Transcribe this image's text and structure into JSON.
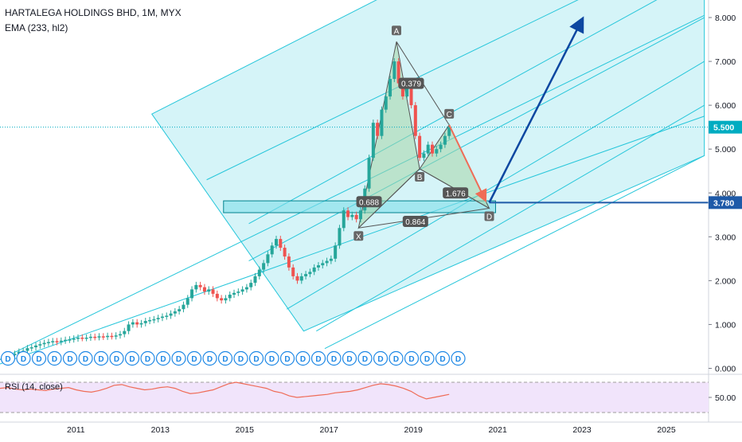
{
  "header": {
    "title": "HARTALEGA HOLDINGS BHD, 1M, MYX",
    "indicator": "EMA (233, hl2)"
  },
  "rsi": {
    "label": "RSI (14, close)",
    "tick": "50.00"
  },
  "colors": {
    "up": "#26a69a",
    "down": "#ef5350",
    "channel": "#b2ebf2",
    "channel_line": "#26c6da",
    "pattern": "#a5d6a7",
    "arrow": "#0d47a1",
    "projection": "#ef6c57",
    "last_price": "#00acc1",
    "level": "#1e5aa8",
    "rsi_bg": "#f1e4fb",
    "rsi_line": "#ef6c57"
  },
  "chart_data": {
    "type": "candlestick",
    "x_ticks": [
      "2011",
      "2013",
      "2015",
      "2017",
      "2019",
      "2021",
      "2023",
      "2025"
    ],
    "y_ticks": [
      "0.000",
      "1.000",
      "2.000",
      "3.000",
      "4.000",
      "5.000",
      "6.000",
      "7.000",
      "8.000"
    ],
    "ylim": [
      -0.1,
      8.4
    ],
    "xlim": [
      2009.2,
      2026.0
    ],
    "last_price": {
      "value": 5.5,
      "label": "5.500"
    },
    "target_level": {
      "value": 3.78,
      "label": "3.780"
    },
    "pattern_points": [
      {
        "name": "X",
        "x": 2017.7,
        "y": 3.2
      },
      {
        "name": "A",
        "x": 2018.6,
        "y": 7.45
      },
      {
        "name": "B",
        "x": 2019.15,
        "y": 4.55
      },
      {
        "name": "C",
        "x": 2019.85,
        "y": 5.55
      },
      {
        "name": "D",
        "x": 2020.8,
        "y": 3.65
      }
    ],
    "ratios": [
      {
        "label": "0.379",
        "x": 2018.95,
        "y": 6.5
      },
      {
        "label": "1.676",
        "x": 2020.0,
        "y": 4.0
      },
      {
        "label": "0.688",
        "x": 2017.95,
        "y": 3.8
      },
      {
        "label": "0.864",
        "x": 2019.05,
        "y": 3.35
      }
    ],
    "support_box": {
      "x0": 2014.5,
      "x1": 2020.95,
      "y0": 3.55,
      "y1": 3.82
    },
    "channel_corners": [
      {
        "x": 2012.8,
        "y": 5.8
      },
      {
        "x": 2025.9,
        "y": 12.2
      },
      {
        "x": 2025.9,
        "y": 4.85
      },
      {
        "x": 2016.4,
        "y": 0.85
      }
    ],
    "channel_lines": [
      {
        "x0": 2009.2,
        "y0": 0.2,
        "x1": 2025.9,
        "y1": 8.05
      },
      {
        "x0": 2009.2,
        "y0": 0.1,
        "x1": 2025.9,
        "y1": 5.75
      },
      {
        "x0": 2014.1,
        "y0": 4.3,
        "x1": 2025.9,
        "y1": 9.8
      },
      {
        "x0": 2015.1,
        "y0": 3.3,
        "x1": 2025.9,
        "y1": 9.0
      },
      {
        "x0": 2015.1,
        "y0": 2.45,
        "x1": 2025.9,
        "y1": 8.0
      },
      {
        "x0": 2016.0,
        "y0": 1.35,
        "x1": 2025.9,
        "y1": 7.0
      },
      {
        "x0": 2016.7,
        "y0": 0.85,
        "x1": 2025.9,
        "y1": 6.0
      },
      {
        "x0": 2016.9,
        "y0": 0.45,
        "x1": 2025.9,
        "y1": 4.85
      }
    ],
    "arrow": {
      "x0": 2020.8,
      "y0": 3.78,
      "x1": 2023.0,
      "y1": 7.95
    },
    "projection_arrow": {
      "x0": 2019.85,
      "y0": 5.55,
      "x1": 2020.7,
      "y1": 3.85
    },
    "candles": [
      [
        2009.25,
        0.22
      ],
      [
        2009.35,
        0.25
      ],
      [
        2009.45,
        0.3
      ],
      [
        2009.55,
        0.33
      ],
      [
        2009.65,
        0.38
      ],
      [
        2009.75,
        0.4
      ],
      [
        2009.85,
        0.46
      ],
      [
        2009.95,
        0.48
      ],
      [
        2010.05,
        0.52
      ],
      [
        2010.15,
        0.55
      ],
      [
        2010.25,
        0.58
      ],
      [
        2010.35,
        0.6
      ],
      [
        2010.45,
        0.62
      ],
      [
        2010.55,
        0.6
      ],
      [
        2010.65,
        0.63
      ],
      [
        2010.75,
        0.65
      ],
      [
        2010.85,
        0.66
      ],
      [
        2010.95,
        0.68
      ],
      [
        2011.05,
        0.7
      ],
      [
        2011.15,
        0.69
      ],
      [
        2011.25,
        0.7
      ],
      [
        2011.35,
        0.72
      ],
      [
        2011.45,
        0.71
      ],
      [
        2011.55,
        0.73
      ],
      [
        2011.65,
        0.72
      ],
      [
        2011.75,
        0.74
      ],
      [
        2011.85,
        0.73
      ],
      [
        2011.95,
        0.75
      ],
      [
        2012.05,
        0.78
      ],
      [
        2012.15,
        0.85
      ],
      [
        2012.25,
        1.0
      ],
      [
        2012.35,
        1.05
      ],
      [
        2012.45,
        1.0
      ],
      [
        2012.55,
        1.03
      ],
      [
        2012.65,
        1.08
      ],
      [
        2012.75,
        1.1
      ],
      [
        2012.85,
        1.12
      ],
      [
        2012.95,
        1.15
      ],
      [
        2013.05,
        1.18
      ],
      [
        2013.15,
        1.2
      ],
      [
        2013.25,
        1.25
      ],
      [
        2013.35,
        1.3
      ],
      [
        2013.45,
        1.35
      ],
      [
        2013.55,
        1.45
      ],
      [
        2013.65,
        1.6
      ],
      [
        2013.75,
        1.8
      ],
      [
        2013.85,
        1.9
      ],
      [
        2013.95,
        1.85
      ],
      [
        2014.05,
        1.75
      ],
      [
        2014.15,
        1.8
      ],
      [
        2014.25,
        1.7
      ],
      [
        2014.35,
        1.6
      ],
      [
        2014.45,
        1.55
      ],
      [
        2014.55,
        1.6
      ],
      [
        2014.65,
        1.68
      ],
      [
        2014.75,
        1.72
      ],
      [
        2014.85,
        1.75
      ],
      [
        2014.95,
        1.8
      ],
      [
        2015.05,
        1.85
      ],
      [
        2015.15,
        1.95
      ],
      [
        2015.25,
        2.1
      ],
      [
        2015.35,
        2.25
      ],
      [
        2015.45,
        2.4
      ],
      [
        2015.55,
        2.6
      ],
      [
        2015.65,
        2.8
      ],
      [
        2015.75,
        2.95
      ],
      [
        2015.85,
        2.75
      ],
      [
        2015.95,
        2.55
      ],
      [
        2016.05,
        2.3
      ],
      [
        2016.15,
        2.1
      ],
      [
        2016.25,
        2.0
      ],
      [
        2016.35,
        2.1
      ],
      [
        2016.45,
        2.15
      ],
      [
        2016.55,
        2.2
      ],
      [
        2016.65,
        2.3
      ],
      [
        2016.75,
        2.35
      ],
      [
        2016.85,
        2.4
      ],
      [
        2016.95,
        2.45
      ],
      [
        2017.05,
        2.5
      ],
      [
        2017.15,
        2.8
      ],
      [
        2017.25,
        3.2
      ],
      [
        2017.35,
        3.6
      ],
      [
        2017.45,
        3.45
      ],
      [
        2017.55,
        3.5
      ],
      [
        2017.65,
        3.4
      ],
      [
        2017.75,
        3.6
      ],
      [
        2017.85,
        4.1
      ],
      [
        2017.95,
        4.8
      ],
      [
        2018.05,
        5.6
      ],
      [
        2018.15,
        5.3
      ],
      [
        2018.25,
        5.9
      ],
      [
        2018.35,
        6.2
      ],
      [
        2018.45,
        6.6
      ],
      [
        2018.55,
        7.0
      ],
      [
        2018.65,
        6.5
      ],
      [
        2018.75,
        6.2
      ],
      [
        2018.85,
        6.4
      ],
      [
        2018.95,
        6.0
      ],
      [
        2019.05,
        5.3
      ],
      [
        2019.15,
        4.8
      ],
      [
        2019.25,
        4.9
      ],
      [
        2019.35,
        5.1
      ],
      [
        2019.45,
        4.9
      ],
      [
        2019.55,
        5.0
      ],
      [
        2019.65,
        5.1
      ],
      [
        2019.75,
        5.3
      ],
      [
        2019.85,
        5.5
      ]
    ],
    "dividend_marker": "D",
    "dividend_count": 30,
    "rsi_values": [
      62,
      63,
      61,
      60,
      61,
      60,
      59,
      61,
      62,
      63,
      60,
      58,
      57,
      59,
      62,
      66,
      67,
      64,
      62,
      60,
      61,
      63,
      64,
      62,
      58,
      55,
      56,
      58,
      60,
      64,
      68,
      70,
      68,
      66,
      64,
      62,
      58,
      56,
      52,
      50,
      51,
      52,
      53,
      54,
      56,
      57,
      58,
      60,
      63,
      66,
      68,
      67,
      65,
      62,
      58,
      52,
      48,
      50,
      52,
      54
    ]
  }
}
